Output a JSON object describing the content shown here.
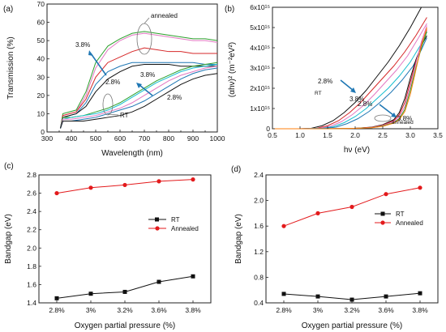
{
  "chart_data": [
    {
      "panel": "(a)",
      "type": "line",
      "xlabel": "Wavelength (nm)",
      "ylabel": "Transmission (%)",
      "xlim": [
        300,
        1000
      ],
      "ylim": [
        0,
        70
      ],
      "xticks": [
        300,
        350,
        400,
        450,
        500,
        550,
        600,
        650,
        700,
        750,
        800,
        850,
        900,
        950,
        1000
      ],
      "xtick_labels": [
        "300",
        "",
        "400",
        "",
        "500",
        "",
        "600",
        "",
        "700",
        "",
        "800",
        "",
        "900",
        "",
        "1000"
      ],
      "yticks": [
        0,
        10,
        20,
        30,
        40,
        50,
        60,
        70
      ],
      "annotations": [
        "annealed",
        "3.8%",
        "2.8%",
        "3.8%",
        "2.8%",
        "RT"
      ],
      "series": [
        {
          "color": "#2ca02c",
          "x": [
            355,
            365,
            420,
            460,
            500,
            550,
            600,
            650,
            700,
            750,
            800,
            850,
            900,
            950,
            1000
          ],
          "y": [
            2,
            10,
            12,
            22,
            38,
            47,
            51,
            54,
            55,
            54,
            53,
            52,
            51,
            51,
            50
          ]
        },
        {
          "color": "#e377c2",
          "x": [
            355,
            365,
            420,
            460,
            500,
            550,
            600,
            650,
            700,
            750,
            800,
            850,
            900,
            950,
            1000
          ],
          "y": [
            2,
            9,
            11,
            20,
            35,
            45,
            50,
            53,
            54,
            53,
            52,
            51,
            50,
            50,
            49
          ]
        },
        {
          "color": "#d62728",
          "x": [
            355,
            365,
            420,
            460,
            500,
            550,
            600,
            650,
            700,
            750,
            800,
            850,
            900,
            950,
            1000
          ],
          "y": [
            2,
            9,
            11,
            18,
            30,
            38,
            41,
            44,
            46,
            45,
            44,
            44,
            43,
            43,
            43
          ]
        },
        {
          "color": "#1f77b4",
          "x": [
            355,
            365,
            420,
            460,
            500,
            550,
            600,
            650,
            700,
            750,
            800,
            850,
            900,
            950,
            1000
          ],
          "y": [
            2,
            8,
            10,
            16,
            26,
            33,
            36,
            38,
            38,
            38,
            38,
            38,
            38,
            37,
            37
          ]
        },
        {
          "color": "#111111",
          "x": [
            355,
            365,
            420,
            460,
            500,
            550,
            600,
            650,
            700,
            750,
            800,
            850,
            900,
            950,
            1000
          ],
          "y": [
            2,
            8,
            10,
            14,
            22,
            29,
            33,
            36,
            37,
            37,
            37,
            36,
            36,
            36,
            36
          ]
        },
        {
          "color": "#2ca02c",
          "x": [
            355,
            365,
            400,
            450,
            500,
            550,
            600,
            650,
            700,
            750,
            800,
            850,
            900,
            950,
            1000
          ],
          "y": [
            2,
            8,
            8,
            9,
            11,
            13,
            16,
            20,
            24,
            28,
            31,
            34,
            36,
            37,
            38
          ]
        },
        {
          "color": "#17becf",
          "x": [
            355,
            365,
            400,
            450,
            500,
            550,
            600,
            650,
            700,
            750,
            800,
            850,
            900,
            950,
            1000
          ],
          "y": [
            2,
            7,
            8,
            9,
            10,
            12,
            15,
            19,
            23,
            27,
            30,
            33,
            35,
            36,
            37
          ]
        },
        {
          "color": "#e377c2",
          "x": [
            355,
            365,
            400,
            450,
            500,
            550,
            600,
            650,
            700,
            750,
            800,
            850,
            900,
            950,
            1000
          ],
          "y": [
            2,
            7,
            7,
            8,
            9,
            11,
            13,
            16,
            20,
            24,
            28,
            31,
            33,
            35,
            36
          ]
        },
        {
          "color": "#1f77b4",
          "x": [
            355,
            365,
            400,
            450,
            500,
            550,
            600,
            650,
            700,
            750,
            800,
            850,
            900,
            950,
            1000
          ],
          "y": [
            2,
            6,
            6,
            7,
            8,
            10,
            12,
            14,
            17,
            21,
            25,
            29,
            32,
            34,
            35
          ]
        },
        {
          "color": "#111111",
          "x": [
            355,
            365,
            400,
            450,
            500,
            550,
            600,
            650,
            700,
            750,
            800,
            850,
            900,
            950,
            1000
          ],
          "y": [
            2,
            6,
            6,
            6,
            7,
            8,
            9,
            11,
            14,
            18,
            22,
            26,
            29,
            31,
            32
          ]
        }
      ]
    },
    {
      "panel": "(b)",
      "type": "line",
      "xlabel": "hν (eV)",
      "ylabel": "(αhν)² (m⁻²eV²)",
      "xlim": [
        0.5,
        3.5
      ],
      "ylim": [
        0,
        6000000000000000.0
      ],
      "xticks": [
        0.5,
        1.0,
        1.5,
        2.0,
        2.5,
        3.0,
        3.5
      ],
      "xtick_labels": [
        "0.5",
        "1.0",
        "1.5",
        "2.0",
        "2.5",
        "3.0",
        "3.5"
      ],
      "yticks": [
        0,
        1000000000000000.0,
        2000000000000000.0,
        3000000000000000.0,
        4000000000000000.0,
        5000000000000000.0,
        6000000000000000.0
      ],
      "ytick_labels": [
        "0",
        "1x10¹⁵",
        "2x10¹⁵",
        "3x10¹⁵",
        "4x10¹⁵",
        "5x10¹⁵",
        "6x10¹⁵"
      ],
      "annotations": [
        "2.8%",
        "RT",
        "3.8%",
        "2.8%",
        "annealed",
        "3.8%"
      ],
      "series": [
        {
          "color": "#111111",
          "x": [
            0.5,
            1.0,
            1.2,
            1.4,
            1.6,
            1.8,
            2.0,
            2.2,
            2.4,
            2.6,
            2.8,
            3.0,
            3.2
          ],
          "y": [
            0,
            0,
            20000000000000.0,
            150000000000000.0,
            400000000000000.0,
            800000000000000.0,
            1300000000000000.0,
            1900000000000000.0,
            2600000000000000.0,
            3300000000000000.0,
            4100000000000000.0,
            5000000000000000.0,
            6000000000000000.0
          ]
        },
        {
          "color": "#d62728",
          "x": [
            0.5,
            1.0,
            1.3,
            1.5,
            1.7,
            1.9,
            2.1,
            2.3,
            2.5,
            2.7,
            2.9,
            3.1,
            3.3
          ],
          "y": [
            0,
            0,
            20000000000000.0,
            150000000000000.0,
            400000000000000.0,
            800000000000000.0,
            1300000000000000.0,
            1900000000000000.0,
            2500000000000000.0,
            3100000000000000.0,
            3800000000000000.0,
            4600000000000000.0,
            5500000000000000.0
          ]
        },
        {
          "color": "#e377c2",
          "x": [
            0.5,
            1.0,
            1.35,
            1.55,
            1.75,
            1.95,
            2.15,
            2.35,
            2.55,
            2.75,
            2.95,
            3.15,
            3.3
          ],
          "y": [
            0,
            0,
            20000000000000.0,
            120000000000000.0,
            350000000000000.0,
            700000000000000.0,
            1150000000000000.0,
            1700000000000000.0,
            2300000000000000.0,
            2900000000000000.0,
            3600000000000000.0,
            4500000000000000.0,
            5200000000000000.0
          ]
        },
        {
          "color": "#17becf",
          "x": [
            0.5,
            1.0,
            1.4,
            1.6,
            1.8,
            2.0,
            2.2,
            2.4,
            2.6,
            2.8,
            3.0,
            3.2,
            3.3
          ],
          "y": [
            0,
            0,
            20000000000000.0,
            100000000000000.0,
            300000000000000.0,
            600000000000000.0,
            1000000000000000.0,
            1500000000000000.0,
            2000000000000000.0,
            2600000000000000.0,
            3300000000000000.0,
            4200000000000000.0,
            4800000000000000.0
          ]
        },
        {
          "color": "#1f77b4",
          "x": [
            0.5,
            1.0,
            1.45,
            1.65,
            1.85,
            2.05,
            2.25,
            2.45,
            2.65,
            2.85,
            3.05,
            3.2,
            3.3
          ],
          "y": [
            0,
            0,
            20000000000000.0,
            80000000000000.0,
            250000000000000.0,
            500000000000000.0,
            850000000000000.0,
            1300000000000000.0,
            1800000000000000.0,
            2400000000000000.0,
            3100000000000000.0,
            3900000000000000.0,
            4500000000000000.0
          ]
        },
        {
          "color": "#111111",
          "x": [
            0.5,
            1.5,
            2.0,
            2.3,
            2.5,
            2.7,
            2.8,
            2.9,
            3.0,
            3.1,
            3.2,
            3.3
          ],
          "y": [
            0,
            0,
            20000000000000.0,
            80000000000000.0,
            200000000000000.0,
            450000000000000.0,
            800000000000000.0,
            1500000000000000.0,
            2500000000000000.0,
            3400000000000000.0,
            4100000000000000.0,
            4600000000000000.0
          ]
        },
        {
          "color": "#d62728",
          "x": [
            0.5,
            1.5,
            2.0,
            2.3,
            2.5,
            2.7,
            2.8,
            2.9,
            3.0,
            3.1,
            3.2,
            3.3
          ],
          "y": [
            0,
            0,
            20000000000000.0,
            70000000000000.0,
            180000000000000.0,
            400000000000000.0,
            700000000000000.0,
            1300000000000000.0,
            2300000000000000.0,
            3300000000000000.0,
            4200000000000000.0,
            4900000000000000.0
          ]
        },
        {
          "color": "#e377c2",
          "x": [
            0.5,
            1.5,
            2.0,
            2.3,
            2.5,
            2.7,
            2.8,
            2.9,
            3.0,
            3.1,
            3.2,
            3.3
          ],
          "y": [
            0,
            0,
            20000000000000.0,
            60000000000000.0,
            160000000000000.0,
            350000000000000.0,
            600000000000000.0,
            1100000000000000.0,
            2100000000000000.0,
            3200000000000000.0,
            4300000000000000.0,
            5100000000000000.0
          ]
        },
        {
          "color": "#2ca02c",
          "x": [
            0.5,
            1.5,
            2.0,
            2.3,
            2.5,
            2.7,
            2.8,
            2.9,
            3.0,
            3.1,
            3.2,
            3.3
          ],
          "y": [
            0,
            0,
            20000000000000.0,
            50000000000000.0,
            140000000000000.0,
            300000000000000.0,
            500000000000000.0,
            950000000000000.0,
            1900000000000000.0,
            3000000000000000.0,
            4000000000000000.0,
            4800000000000000.0
          ]
        },
        {
          "color": "#ff7f0e",
          "x": [
            0.5,
            1.5,
            2.0,
            2.3,
            2.5,
            2.7,
            2.8,
            2.9,
            3.0,
            3.1,
            3.2,
            3.3
          ],
          "y": [
            0,
            0,
            20000000000000.0,
            50000000000000.0,
            120000000000000.0,
            280000000000000.0,
            450000000000000.0,
            850000000000000.0,
            1700000000000000.0,
            2900000000000000.0,
            4100000000000000.0,
            5000000000000000.0
          ]
        }
      ]
    },
    {
      "panel": "(c)",
      "type": "line",
      "xlabel": "Oxygen partial pressure (%)",
      "ylabel": "Bandgap (eV)",
      "categories": [
        "2.8%",
        "3%",
        "3.2%",
        "3.6%",
        "3.8%"
      ],
      "ylim": [
        1.4,
        2.8
      ],
      "yticks": [
        1.4,
        1.6,
        1.8,
        2.0,
        2.2,
        2.4,
        2.6,
        2.8
      ],
      "ytick_labels": [
        "1.4",
        "1.6",
        "1.8",
        "2.0",
        "2.2",
        "2.4",
        "2.6",
        "2.8"
      ],
      "legend_position": "right",
      "series": [
        {
          "name": "RT",
          "color": "#111111",
          "marker": "square",
          "values": [
            1.45,
            1.5,
            1.52,
            1.63,
            1.69
          ]
        },
        {
          "name": "Annealed",
          "color": "#e31a1c",
          "marker": "circle",
          "values": [
            2.6,
            2.66,
            2.69,
            2.73,
            2.75
          ]
        }
      ]
    },
    {
      "panel": "(d)",
      "type": "line",
      "xlabel": "Oxygen partial pressure (%)",
      "ylabel": "Bandgap (eV)",
      "categories": [
        "2.8%",
        "3%",
        "3.2%",
        "3.6%",
        "3.8%"
      ],
      "ylim": [
        0.4,
        2.4
      ],
      "yticks": [
        0.4,
        0.8,
        1.2,
        1.6,
        2.0,
        2.4
      ],
      "ytick_labels": [
        "0.4",
        "0.8",
        "1.2",
        "1.6",
        "2.0",
        "2.4"
      ],
      "legend_position": "right",
      "series": [
        {
          "name": "RT",
          "color": "#111111",
          "marker": "square",
          "values": [
            0.54,
            0.5,
            0.45,
            0.5,
            0.55
          ]
        },
        {
          "name": "Annealed",
          "color": "#e31a1c",
          "marker": "circle",
          "values": [
            1.6,
            1.8,
            1.9,
            2.1,
            2.2
          ]
        }
      ]
    }
  ]
}
